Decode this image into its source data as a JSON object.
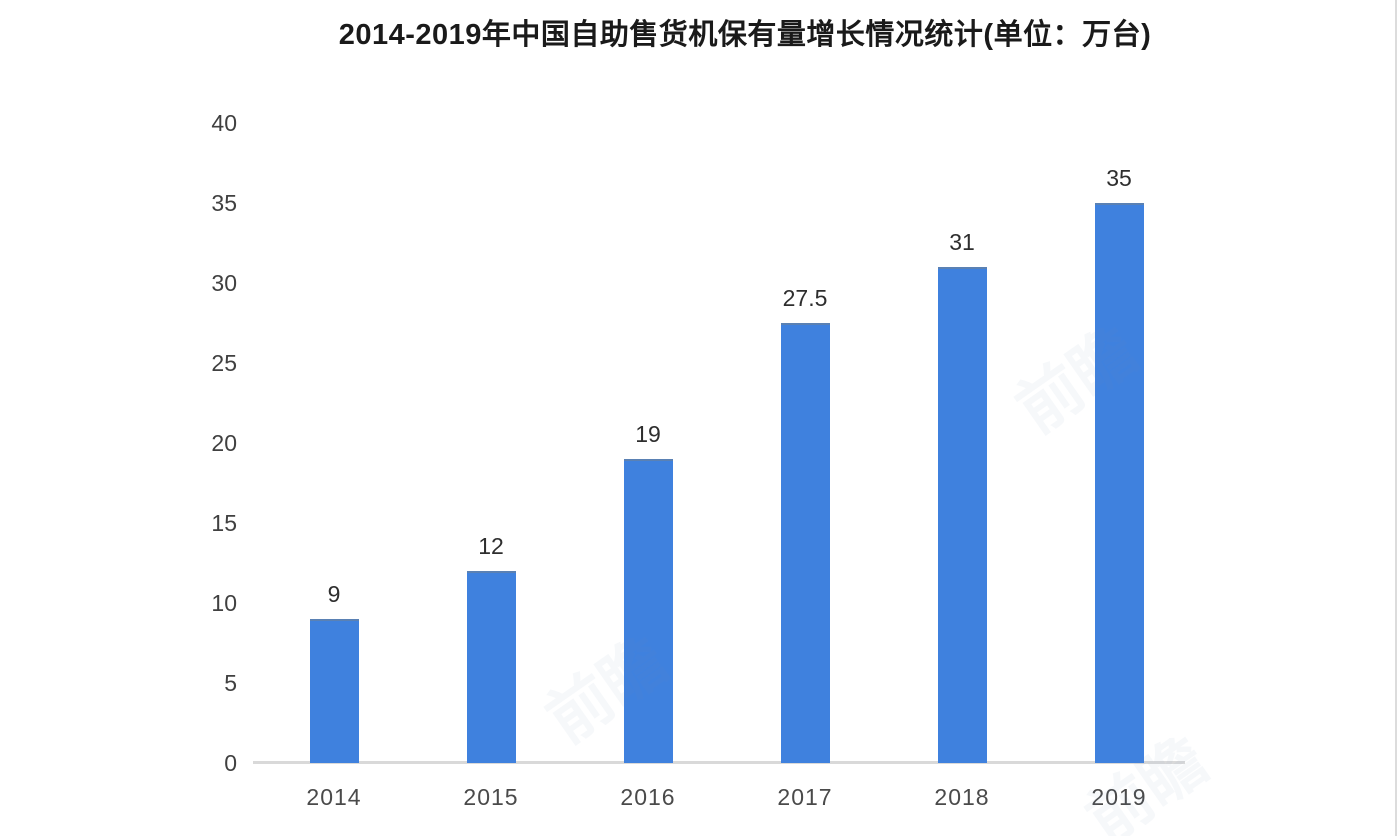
{
  "title": "2014-2019年中国自助售货机保有量增长情况统计(单位：万台)",
  "chart_data": {
    "type": "bar",
    "title": "2014-2019年中国自助售货机保有量增长情况统计(单位：万台)",
    "categories": [
      "2014",
      "2015",
      "2016",
      "2017",
      "2018",
      "2019"
    ],
    "values": [
      9,
      12,
      19,
      27.5,
      31,
      35
    ],
    "value_labels": [
      "9",
      "12",
      "19",
      "27.5",
      "31",
      "35"
    ],
    "xlabel": "",
    "ylabel": "",
    "unit": "万台",
    "ylim": [
      0,
      40
    ],
    "yticks": [
      0,
      5,
      10,
      15,
      20,
      25,
      30,
      35,
      40
    ],
    "grid": false,
    "legend": false,
    "bar_color": "#3F81DE",
    "axis_line_color": "#D9D9D9",
    "tick_label_color": "#404040",
    "value_label_color": "#2E2E2E",
    "title_color": "#1A1A1A"
  },
  "watermark": {
    "text": "前瞻"
  }
}
